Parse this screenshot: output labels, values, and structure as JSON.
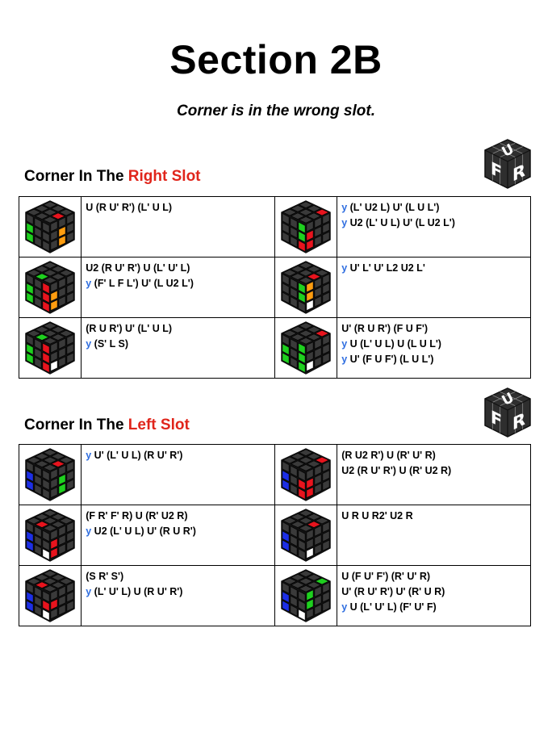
{
  "page": {
    "title": "Section 2B",
    "subtitle": "Corner is in the wrong slot."
  },
  "ufr_badge": {
    "u": "U",
    "f": "F",
    "r": "R"
  },
  "colors": {
    "rotation_letter": "#2f6ee0",
    "highlight": "#e0251b",
    "sticker_dark": "#3a3a3a",
    "sticker_red": "#e8141e",
    "sticker_green": "#1fd01f",
    "sticker_orange": "#ff9d10",
    "sticker_blue": "#1d2fe6",
    "sticker_white": "#ffffff"
  },
  "sections": [
    {
      "heading_prefix": "Corner In The ",
      "heading_highlight": "Right Slot",
      "cases": [
        {
          "lines": [
            {
              "rot": "",
              "alg": "U (R U' R') (L' U L)"
            }
          ],
          "cube": {
            "top": [
              "d",
              "d",
              "d",
              "d",
              "d",
              "d",
              "d",
              "r",
              "d"
            ],
            "left": [
              "d",
              "d",
              "d",
              "g",
              "d",
              "d",
              "g",
              "d",
              "d"
            ],
            "right": [
              "d",
              "d",
              "d",
              "d",
              "o",
              "d",
              "d",
              "o",
              "d"
            ]
          }
        },
        {
          "lines": [
            {
              "rot": "y",
              "alg": " (L' U2 L) U' (L U L')"
            },
            {
              "rot": "y",
              "alg": " U2 (L' U L) U' (L U2 L')"
            }
          ],
          "cube": {
            "top": [
              "d",
              "d",
              "d",
              "d",
              "d",
              "d",
              "r",
              "d",
              "d"
            ],
            "left": [
              "d",
              "d",
              "g",
              "d",
              "d",
              "g",
              "d",
              "d",
              "r"
            ],
            "right": [
              "d",
              "d",
              "d",
              "r",
              "d",
              "d",
              "r",
              "d",
              "d"
            ]
          }
        },
        {
          "lines": [
            {
              "rot": "",
              "alg": "U2 (R U' R') U (L' U' L)"
            },
            {
              "rot": "y",
              "alg": " (F' L F L') U' (L U2 L')"
            }
          ],
          "cube": {
            "top": [
              "d",
              "d",
              "d",
              "d",
              "d",
              "g",
              "d",
              "d",
              "d"
            ],
            "left": [
              "d",
              "d",
              "r",
              "g",
              "d",
              "r",
              "g",
              "d",
              "r"
            ],
            "right": [
              "d",
              "d",
              "d",
              "o",
              "d",
              "d",
              "o",
              "d",
              "d"
            ]
          }
        },
        {
          "lines": [
            {
              "rot": "y",
              "alg": " U' L' U' L2 U2 L'"
            }
          ],
          "cube": {
            "top": [
              "d",
              "d",
              "d",
              "d",
              "d",
              "d",
              "d",
              "r",
              "d"
            ],
            "left": [
              "d",
              "d",
              "g",
              "d",
              "d",
              "g",
              "d",
              "d",
              "d"
            ],
            "right": [
              "o",
              "d",
              "d",
              "o",
              "d",
              "d",
              "w",
              "d",
              "d"
            ]
          }
        },
        {
          "lines": [
            {
              "rot": "",
              "alg": "(R U R') U' (L' U L)"
            },
            {
              "rot": "y",
              "alg": " (S' L S)"
            }
          ],
          "cube": {
            "top": [
              "d",
              "d",
              "d",
              "d",
              "d",
              "g",
              "d",
              "d",
              "d"
            ],
            "left": [
              "d",
              "d",
              "r",
              "g",
              "d",
              "r",
              "g",
              "d",
              "r"
            ],
            "right": [
              "d",
              "d",
              "d",
              "d",
              "d",
              "d",
              "w",
              "d",
              "d"
            ]
          }
        },
        {
          "lines": [
            {
              "rot": "",
              "alg": "U' (R U R') (F U F')"
            },
            {
              "rot": "y",
              "alg": " U (L' U L) U (L U L')"
            },
            {
              "rot": "y",
              "alg": " U' (F U F') (L U L')"
            }
          ],
          "cube": {
            "top": [
              "d",
              "d",
              "d",
              "d",
              "d",
              "d",
              "r",
              "d",
              "d"
            ],
            "left": [
              "d",
              "d",
              "g",
              "g",
              "d",
              "g",
              "g",
              "d",
              "g"
            ],
            "right": [
              "d",
              "d",
              "d",
              "d",
              "d",
              "d",
              "w",
              "d",
              "d"
            ]
          }
        }
      ]
    },
    {
      "heading_prefix": "Corner In The ",
      "heading_highlight": "Left Slot",
      "cases": [
        {
          "lines": [
            {
              "rot": "y",
              "alg": " U' (L' U L) (R U' R')"
            }
          ],
          "cube": {
            "top": [
              "d",
              "d",
              "d",
              "d",
              "d",
              "d",
              "d",
              "r",
              "d"
            ],
            "left": [
              "d",
              "d",
              "d",
              "b",
              "d",
              "d",
              "b",
              "d",
              "d"
            ],
            "right": [
              "d",
              "d",
              "d",
              "d",
              "g",
              "d",
              "d",
              "g",
              "d"
            ]
          }
        },
        {
          "lines": [
            {
              "rot": "",
              "alg": "(R U2 R') U (R' U' R)"
            },
            {
              "rot": "",
              "alg": "U2 (R U' R') U (R' U2 R)"
            }
          ],
          "cube": {
            "top": [
              "d",
              "d",
              "d",
              "d",
              "d",
              "d",
              "r",
              "d",
              "d"
            ],
            "left": [
              "d",
              "d",
              "d",
              "b",
              "d",
              "r",
              "b",
              "d",
              "r"
            ],
            "right": [
              "d",
              "d",
              "d",
              "r",
              "d",
              "d",
              "r",
              "d",
              "d"
            ]
          }
        },
        {
          "lines": [
            {
              "rot": "",
              "alg": "(F R' F' R) U (R' U2 R)"
            },
            {
              "rot": "y",
              "alg": " U2 (L' U L) U' (R U R')"
            }
          ],
          "cube": {
            "top": [
              "d",
              "d",
              "d",
              "d",
              "d",
              "r",
              "d",
              "d",
              "d"
            ],
            "left": [
              "d",
              "d",
              "d",
              "b",
              "d",
              "d",
              "b",
              "d",
              "w"
            ],
            "right": [
              "d",
              "d",
              "d",
              "r",
              "d",
              "d",
              "r",
              "d",
              "d"
            ]
          }
        },
        {
          "lines": [
            {
              "rot": "",
              "alg": "U R U R2' U2 R"
            }
          ],
          "cube": {
            "top": [
              "d",
              "d",
              "d",
              "d",
              "d",
              "d",
              "d",
              "r",
              "d"
            ],
            "left": [
              "d",
              "d",
              "d",
              "b",
              "d",
              "d",
              "b",
              "d",
              "d"
            ],
            "right": [
              "d",
              "d",
              "d",
              "d",
              "d",
              "d",
              "w",
              "d",
              "d"
            ]
          }
        },
        {
          "lines": [
            {
              "rot": "",
              "alg": "(S R' S')"
            },
            {
              "rot": "y",
              "alg": " (L' U' L) U (R U' R')"
            }
          ],
          "cube": {
            "top": [
              "d",
              "d",
              "d",
              "d",
              "d",
              "r",
              "d",
              "d",
              "d"
            ],
            "left": [
              "d",
              "d",
              "d",
              "b",
              "d",
              "r",
              "b",
              "d",
              "w"
            ],
            "right": [
              "d",
              "d",
              "d",
              "r",
              "d",
              "d",
              "d",
              "d",
              "d"
            ]
          }
        },
        {
          "lines": [
            {
              "rot": "",
              "alg": "U (F U' F') (R' U' R)"
            },
            {
              "rot": "",
              "alg": "U' (R U' R') U' (R' U R)"
            },
            {
              "rot": "y",
              "alg": " U (L' U' L) (F' U' F)"
            }
          ],
          "cube": {
            "top": [
              "d",
              "d",
              "d",
              "d",
              "d",
              "d",
              "g",
              "d",
              "d"
            ],
            "left": [
              "d",
              "d",
              "d",
              "b",
              "d",
              "d",
              "b",
              "d",
              "w"
            ],
            "right": [
              "g",
              "d",
              "d",
              "g",
              "d",
              "d",
              "d",
              "d",
              "d"
            ]
          }
        }
      ]
    }
  ]
}
